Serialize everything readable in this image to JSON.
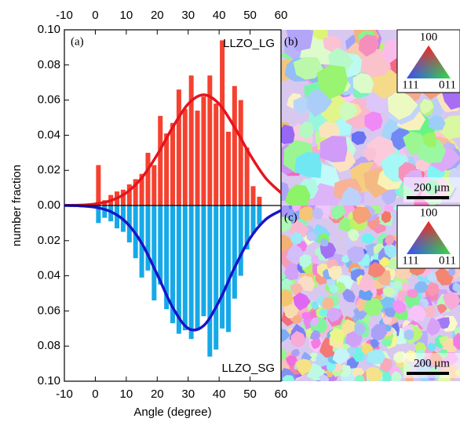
{
  "chart_data": [
    {
      "type": "histogram",
      "panel_label": "(a)",
      "ylabel": "number fraction",
      "bins": [
        0,
        2,
        4,
        6,
        8,
        10,
        12,
        14,
        16,
        18,
        20,
        22,
        24,
        26,
        28,
        30,
        32,
        34,
        36,
        38,
        40,
        42,
        44,
        46,
        48,
        50,
        52,
        54
      ],
      "series": [
        {
          "name": "LLZO_LG",
          "color": "#f5412f",
          "values": [
            0.023,
            0.003,
            0.006,
            0.008,
            0.009,
            0.012,
            0.015,
            0.018,
            0.03,
            0.023,
            0.051,
            0.041,
            0.047,
            0.066,
            0.055,
            0.074,
            0.054,
            0.062,
            0.074,
            0.058,
            0.094,
            0.042,
            0.068,
            0.06,
            0.033,
            0.011,
            0.005
          ]
        }
      ],
      "fit": {
        "color": "#e6141e",
        "x": [
          -10,
          -5,
          0,
          5,
          10,
          15,
          20,
          25,
          30,
          35,
          40,
          45,
          50,
          55,
          60
        ],
        "values": [
          0.0001,
          0.0002,
          0.0009,
          0.0028,
          0.0072,
          0.0157,
          0.0289,
          0.0445,
          0.0578,
          0.063,
          0.0578,
          0.0445,
          0.0289,
          0.0157,
          0.0072
        ]
      },
      "xlim": [
        -10,
        60
      ],
      "xticks": [
        -10,
        0,
        10,
        20,
        30,
        40,
        50,
        60
      ],
      "ylim": [
        0,
        0.1
      ],
      "inverted": false,
      "yticks": [
        {
          "value": 0,
          "label": "0.00"
        },
        {
          "value": 0.02,
          "label": "0.02"
        },
        {
          "value": 0.04,
          "label": "0.04"
        },
        {
          "value": 0.06,
          "label": "0.06"
        },
        {
          "value": 0.08,
          "label": "0.08"
        },
        {
          "value": 0.1,
          "label": "0.10"
        }
      ]
    },
    {
      "type": "histogram",
      "xlabel": "Angle (degree)",
      "bins": [
        0,
        2,
        4,
        6,
        8,
        10,
        12,
        14,
        16,
        18,
        20,
        22,
        24,
        26,
        28,
        30,
        32,
        34,
        36,
        38,
        40,
        42,
        44,
        46,
        48,
        50,
        52,
        54
      ],
      "series": [
        {
          "name": "LLZO_SG",
          "color": "#16a9e8",
          "values": [
            0.01,
            0.007,
            0.009,
            0.013,
            0.015,
            0.021,
            0.03,
            0.041,
            0.037,
            0.054,
            0.045,
            0.059,
            0.067,
            0.073,
            0.071,
            0.076,
            0.071,
            0.063,
            0.086,
            0.082,
            0.07,
            0.072,
            0.053,
            0.04,
            0.025,
            0.016,
            0.011
          ]
        }
      ],
      "fit": {
        "color": "#1a14c8",
        "x": [
          -10,
          -5,
          0,
          5,
          10,
          15,
          20,
          25,
          30,
          35,
          40,
          45,
          50,
          55,
          60
        ],
        "values": [
          0.0,
          0.0002,
          0.001,
          0.0035,
          0.0096,
          0.0215,
          0.0392,
          0.058,
          0.0699,
          0.0684,
          0.0545,
          0.0353,
          0.0186,
          0.008,
          0.0028
        ]
      },
      "xlim": [
        -10,
        60
      ],
      "xticks": [
        -10,
        0,
        10,
        20,
        30,
        40,
        50,
        60
      ],
      "ylim": [
        0,
        0.1
      ],
      "inverted": true,
      "yticks": [
        {
          "value": 0.02,
          "label": "0.02"
        },
        {
          "value": 0.04,
          "label": "0.04"
        },
        {
          "value": 0.06,
          "label": "0.06"
        },
        {
          "value": 0.08,
          "label": "0.08"
        },
        {
          "value": 0.1,
          "label": "0.10"
        }
      ]
    }
  ],
  "ebsd_panels": [
    {
      "label": "(b)",
      "legend": [
        "100",
        "111",
        "011"
      ],
      "scale": "200 μm"
    },
    {
      "label": "(c)",
      "legend": [
        "100",
        "111",
        "011"
      ],
      "scale": "200 μm"
    }
  ]
}
